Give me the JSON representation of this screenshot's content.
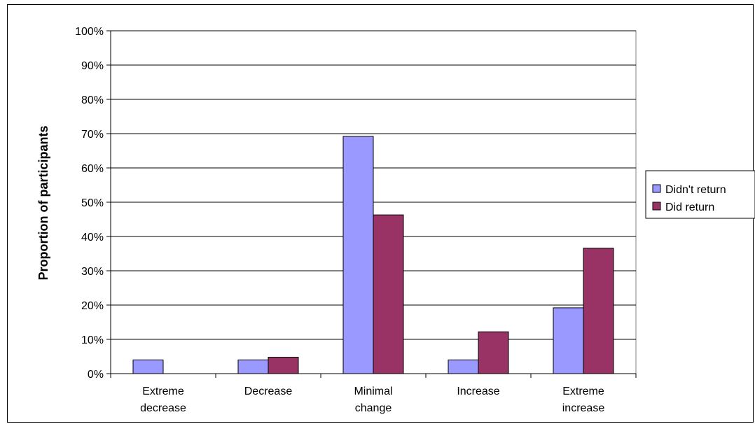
{
  "chart_data": {
    "type": "bar",
    "title": "",
    "xlabel": "",
    "ylabel": "Proportion of participants",
    "categories": [
      [
        "Extreme",
        "decrease"
      ],
      [
        "Decrease"
      ],
      [
        "Minimal",
        "change"
      ],
      [
        "Increase"
      ],
      [
        "Extreme",
        "increase"
      ]
    ],
    "series": [
      {
        "name": "Didn't return",
        "color": "#9999ff",
        "values": [
          4,
          4,
          69.2,
          4,
          19.2
        ]
      },
      {
        "name": "Did return",
        "color": "#993366",
        "values": [
          0,
          4.8,
          46.3,
          12.2,
          36.6
        ]
      }
    ],
    "ylim": [
      0,
      100
    ],
    "yticks": [
      "0%",
      "10%",
      "20%",
      "30%",
      "40%",
      "50%",
      "60%",
      "70%",
      "80%",
      "90%",
      "100%"
    ],
    "grid": true,
    "legend": "right"
  }
}
